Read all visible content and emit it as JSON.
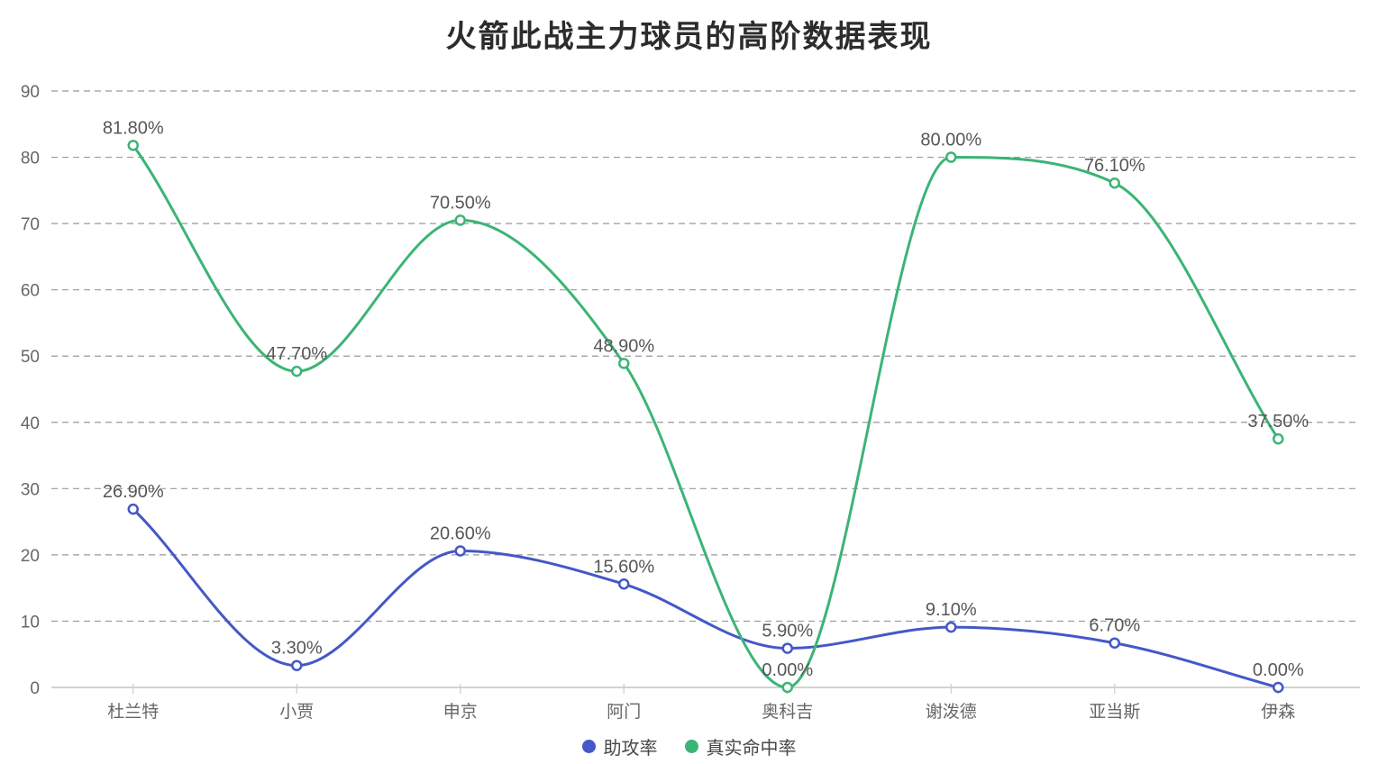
{
  "title": "火箭此战主力球员的高阶数据表现",
  "chart_data": {
    "type": "line",
    "smooth": true,
    "title": "火箭此战主力球员的高阶数据表现",
    "categories": [
      "杜兰特",
      "小贾",
      "申京",
      "阿门",
      "奥科吉",
      "谢泼德",
      "亚当斯",
      "伊森"
    ],
    "series": [
      {
        "name": "助攻率",
        "color": "#4458c7",
        "values": [
          26.9,
          3.3,
          20.6,
          15.6,
          5.9,
          9.1,
          6.7,
          0.0
        ],
        "labels": [
          "26.90%",
          "3.30%",
          "20.60%",
          "15.60%",
          "5.90%",
          "9.10%",
          "6.70%",
          "0.00%"
        ]
      },
      {
        "name": "真实命中率",
        "color": "#3cb476",
        "values": [
          81.8,
          47.7,
          70.5,
          48.9,
          0.0,
          80.0,
          76.1,
          37.5
        ],
        "labels": [
          "81.80%",
          "47.70%",
          "70.50%",
          "48.90%",
          "0.00%",
          "80.00%",
          "76.10%",
          "37.50%"
        ]
      }
    ],
    "ylim": [
      0,
      90
    ],
    "yticks": [
      0,
      10,
      20,
      30,
      40,
      50,
      60,
      70,
      80,
      90
    ],
    "xlabel": "",
    "ylabel": "",
    "grid": "horizontal-dashed",
    "legend_position": "bottom-center"
  },
  "legend": {
    "items": [
      {
        "label": "助攻率",
        "color": "#4458c7"
      },
      {
        "label": "真实命中率",
        "color": "#3cb476"
      }
    ]
  },
  "colors": {
    "assist_rate": "#4458c7",
    "true_shooting": "#3cb476",
    "gridline": "#999999",
    "axis_line": "#c4c4c4",
    "axis_text": "#666666",
    "data_label": "#575757",
    "title_text": "#2c2c2c",
    "background": "#ffffff"
  }
}
